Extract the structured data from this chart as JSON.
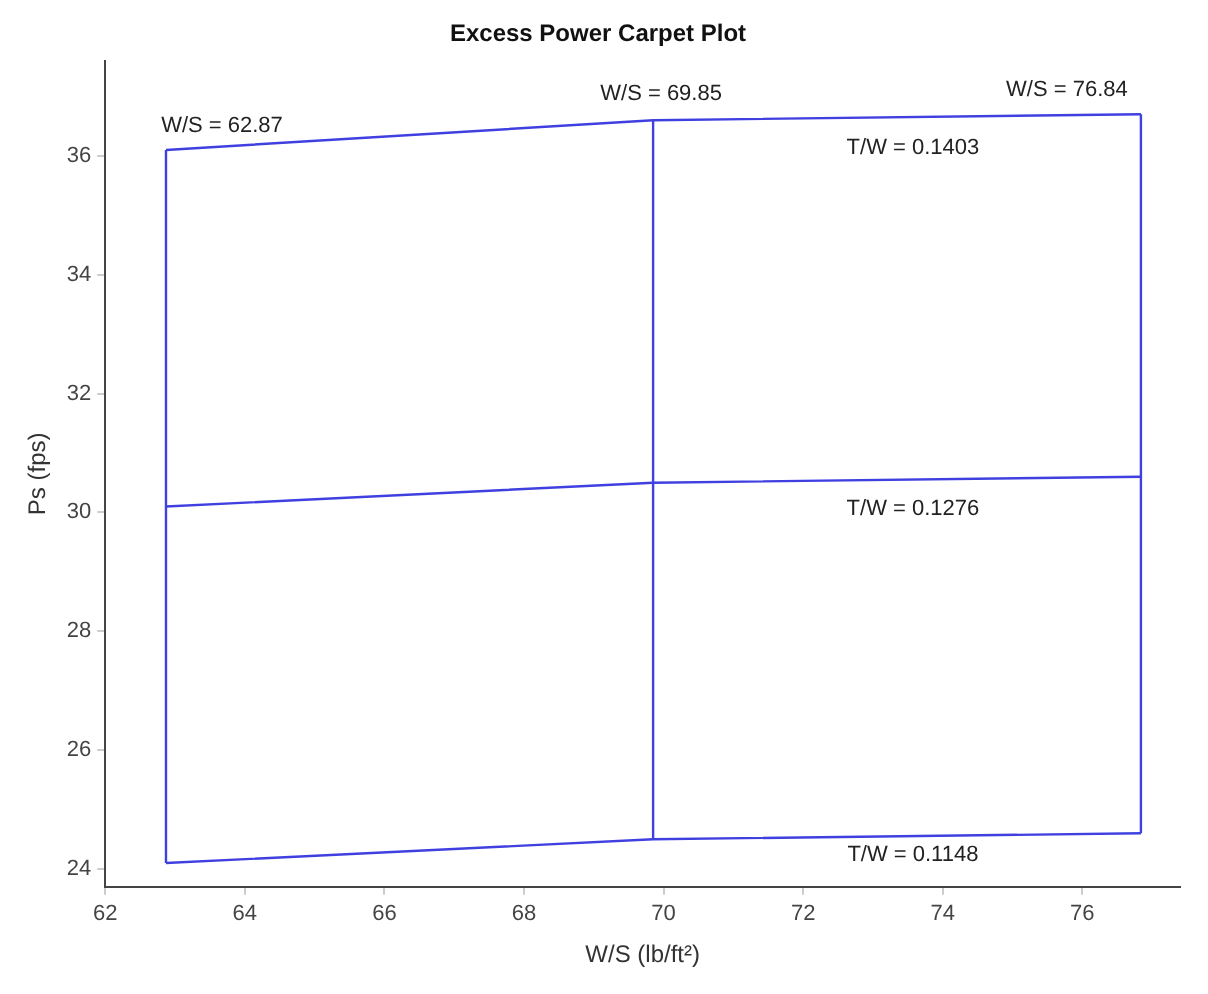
{
  "chart_data": {
    "type": "line",
    "title": "Excess Power Carpet Plot",
    "xlabel": "W/S (lb/ft²)",
    "ylabel": "Ps (fps)",
    "xlim": [
      62,
      77.4
    ],
    "xticks": [
      62,
      64,
      66,
      68,
      70,
      72,
      74,
      76
    ],
    "ylim": [
      23.7,
      37.6
    ],
    "yticks": [
      24,
      26,
      28,
      30,
      32,
      34,
      36
    ],
    "grid": false,
    "legend": false,
    "marker": "none",
    "line_style": "solid",
    "series": [
      {
        "color": "#4040e0",
        "x": [
          62.87,
          69.85,
          76.84
        ],
        "values": [
          24.1,
          24.5,
          24.6
        ]
      },
      {
        "color": "#4040e0",
        "x": [
          62.87,
          69.85,
          76.84
        ],
        "values": [
          30.1,
          30.5,
          30.6
        ]
      },
      {
        "color": "#4040e0",
        "x": [
          62.87,
          69.85,
          76.84
        ],
        "values": [
          36.1,
          36.6,
          36.7
        ]
      },
      {
        "color": "#4040e0",
        "x": [
          62.87,
          62.87,
          62.87
        ],
        "values": [
          24.1,
          30.1,
          36.1
        ]
      },
      {
        "color": "#4040e0",
        "x": [
          69.85,
          69.85,
          69.85
        ],
        "values": [
          24.5,
          30.5,
          36.6
        ]
      },
      {
        "color": "#4040e0",
        "x": [
          76.84,
          76.84,
          76.84
        ],
        "values": [
          24.6,
          30.6,
          36.7
        ]
      }
    ],
    "annotations": [
      "W/S = 62.87",
      "W/S = 69.85",
      "W/S = 76.84",
      "T/W = 0.1403",
      "T/W = 0.1276",
      "T/W = 0.1148"
    ]
  }
}
